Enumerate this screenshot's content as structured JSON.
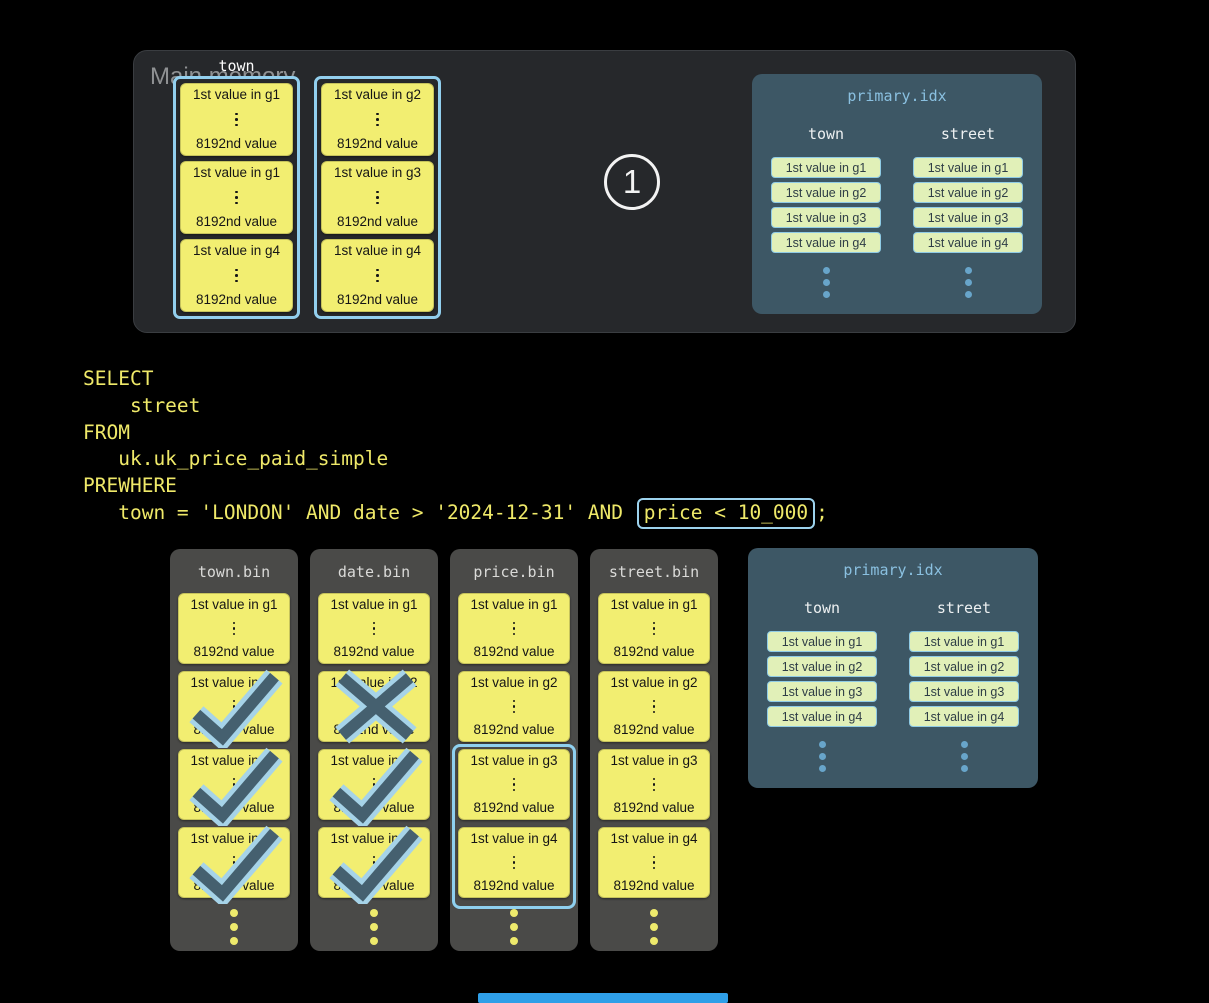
{
  "main_memory": {
    "label": "Main memory",
    "column_label": "town",
    "step_badge": "1",
    "stacks": [
      [
        {
          "first": "1st value in g1",
          "last": "8192nd value"
        },
        {
          "first": "1st value in g1",
          "last": "8192nd value"
        },
        {
          "first": "1st value in g4",
          "last": "8192nd value"
        }
      ],
      [
        {
          "first": "1st value in g2",
          "last": "8192nd value"
        },
        {
          "first": "1st value in g3",
          "last": "8192nd value"
        },
        {
          "first": "1st value in g4",
          "last": "8192nd value"
        }
      ]
    ]
  },
  "sql": {
    "lines": [
      "SELECT",
      "    street",
      "FROM",
      "   uk.uk_price_paid_simple",
      "PREWHERE"
    ],
    "final_line": {
      "prefix": "   town = 'LONDON' AND date > '2024-12-31' AND ",
      "highlight": "price < 10_000",
      "suffix": ";"
    }
  },
  "bins": [
    {
      "name": "town.bin",
      "granules": [
        {
          "first": "1st value in g1",
          "last": "8192nd value",
          "mark": "none"
        },
        {
          "first": "1st value in g2",
          "last": "8192nd value",
          "mark": "check"
        },
        {
          "first": "1st value in g3",
          "last": "8192nd value",
          "mark": "check"
        },
        {
          "first": "1st value in g4",
          "last": "8192nd value",
          "mark": "check"
        }
      ]
    },
    {
      "name": "date.bin",
      "granules": [
        {
          "first": "1st value in g1",
          "last": "8192nd value",
          "mark": "none"
        },
        {
          "first": "1st value in g2",
          "last": "8192nd value",
          "mark": "cross"
        },
        {
          "first": "1st value in g3",
          "last": "8192nd value",
          "mark": "check"
        },
        {
          "first": "1st value in g4",
          "last": "8192nd value",
          "mark": "check"
        }
      ]
    },
    {
      "name": "price.bin",
      "granules": [
        {
          "first": "1st value in g1",
          "last": "8192nd value",
          "mark": "none"
        },
        {
          "first": "1st value in g2",
          "last": "8192nd value",
          "mark": "none"
        },
        {
          "first": "1st value in g3",
          "last": "8192nd value",
          "mark": "none"
        },
        {
          "first": "1st value in g4",
          "last": "8192nd value",
          "mark": "none"
        }
      ],
      "selection_outline": [
        2,
        3
      ]
    },
    {
      "name": "street.bin",
      "granules": [
        {
          "first": "1st value in g1",
          "last": "8192nd value",
          "mark": "none"
        },
        {
          "first": "1st value in g2",
          "last": "8192nd value",
          "mark": "none"
        },
        {
          "first": "1st value in g3",
          "last": "8192nd value",
          "mark": "none"
        },
        {
          "first": "1st value in g4",
          "last": "8192nd value",
          "mark": "none"
        }
      ]
    }
  ],
  "primary_index": {
    "title": "primary.idx",
    "columns": [
      {
        "name": "town",
        "entries": [
          "1st value in g1",
          "1st value in g2",
          "1st value in g3",
          "1st value in g4"
        ]
      },
      {
        "name": "street",
        "entries": [
          "1st value in g1",
          "1st value in g2",
          "1st value in g3",
          "1st value in g4"
        ]
      }
    ]
  },
  "colors": {
    "background": "#000000",
    "memory_panel": "#26282b",
    "granule_yellow": "#f2ee71",
    "selection_blue": "#92cfee",
    "index_panel": "#3d5765",
    "index_pill": "#e1f0b8",
    "index_pill_border": "#8fcbe5",
    "index_dot": "#68a5ca",
    "bin_panel": "#4a4a48",
    "sql_yellow": "#efe969",
    "check_dark": "#45606f",
    "check_light": "#a6d3e8",
    "progress_bar": "#2f9fe8"
  }
}
